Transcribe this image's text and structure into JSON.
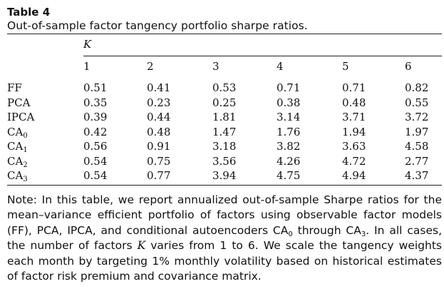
{
  "table": {
    "label": "Table 4",
    "caption": "Out-of-sample factor tangency portfolio sharpe ratios.",
    "k_header": "K",
    "columns": [
      "1",
      "2",
      "3",
      "4",
      "5",
      "6"
    ],
    "rows": [
      {
        "model": "FF",
        "model_sub": "",
        "values": [
          "0.51",
          "0.41",
          "0.53",
          "0.71",
          "0.71",
          "0.82"
        ]
      },
      {
        "model": "PCA",
        "model_sub": "",
        "values": [
          "0.35",
          "0.23",
          "0.25",
          "0.38",
          "0.48",
          "0.55"
        ]
      },
      {
        "model": "IPCA",
        "model_sub": "",
        "values": [
          "0.39",
          "0.44",
          "1.81",
          "3.14",
          "3.71",
          "3.72"
        ]
      },
      {
        "model": "CA",
        "model_sub": "0",
        "values": [
          "0.42",
          "0.48",
          "1.47",
          "1.76",
          "1.94",
          "1.97"
        ]
      },
      {
        "model": "CA",
        "model_sub": "1",
        "values": [
          "0.56",
          "0.91",
          "3.18",
          "3.82",
          "3.63",
          "4.58"
        ]
      },
      {
        "model": "CA",
        "model_sub": "2",
        "values": [
          "0.54",
          "0.75",
          "3.56",
          "4.26",
          "4.72",
          "2.77"
        ]
      },
      {
        "model": "CA",
        "model_sub": "3",
        "values": [
          "0.54",
          "0.77",
          "3.94",
          "4.75",
          "4.94",
          "4.37"
        ]
      }
    ]
  },
  "note": {
    "part1": "Note: In this table, we report annualized out-of-sample Sharpe ratios for the mean–variance efficient portfolio of factors using observable factor models (FF), PCA, IPCA, and conditional autoencoders CA",
    "sub1": "0",
    "part2": " through CA",
    "sub2": "3",
    "part3": ". In all cases, the number of factors ",
    "k_symbol": "K",
    "part4": " varies from 1 to 6. We scale the tangency weights each month by targeting 1% monthly volatility based on historical estimates of factor risk premium and covariance matrix."
  }
}
